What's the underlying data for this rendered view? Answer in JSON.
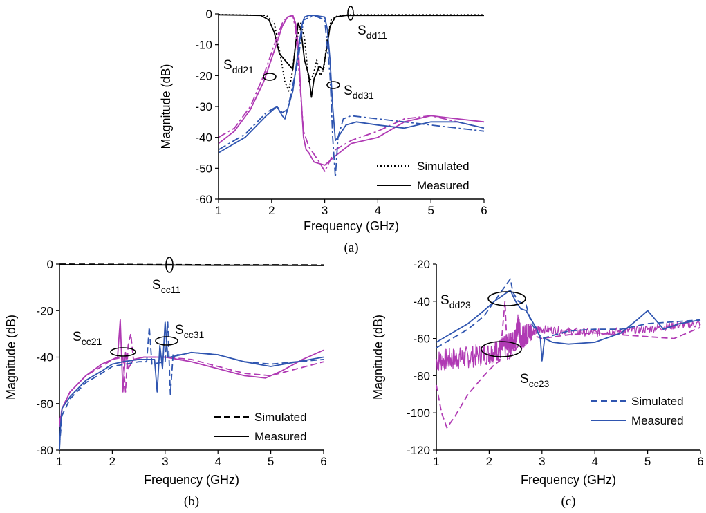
{
  "chart_data": [
    {
      "id": "a",
      "type": "line",
      "caption": "(a)",
      "xlabel": "Frequency (GHz)",
      "ylabel": "Magnitude (dB)",
      "xlim": [
        1,
        6
      ],
      "ylim": [
        -60,
        0
      ],
      "xticks": [
        1,
        2,
        3,
        4,
        5,
        6
      ],
      "yticks": [
        0,
        -10,
        -20,
        -30,
        -40,
        -50,
        -60
      ],
      "grid": false,
      "legend": {
        "position": "bottom-right",
        "entries": [
          {
            "label": "Simulated",
            "dash": "dotted"
          },
          {
            "label": "Measured",
            "dash": "solid"
          }
        ]
      },
      "annotations": [
        {
          "main": "S",
          "sub": "dd11"
        },
        {
          "main": "S",
          "sub": "dd21"
        },
        {
          "main": "S",
          "sub": "dd31"
        }
      ],
      "series": [
        {
          "ref": "Sdd11 measured",
          "color": "#000000",
          "dash": "solid",
          "x": [
            1,
            1.8,
            1.95,
            2.05,
            2.15,
            2.25,
            2.35,
            2.4,
            2.45,
            2.5,
            2.55,
            2.62,
            2.7,
            2.75,
            2.8,
            2.85,
            2.9,
            2.97,
            3.05,
            3.1,
            3.2,
            3.4,
            6
          ],
          "y": [
            -0.3,
            -0.5,
            -2,
            -6,
            -13,
            -15,
            -17,
            -18,
            -10,
            -3,
            -5,
            -15,
            -20,
            -27,
            -21,
            -19,
            -17,
            -18,
            -10,
            -4,
            -1,
            -0.5,
            -0.5
          ]
        },
        {
          "ref": "Sdd11 simulated",
          "color": "#000000",
          "dash": "dotted",
          "x": [
            1,
            1.9,
            2.05,
            2.15,
            2.25,
            2.32,
            2.38,
            2.45,
            2.55,
            2.62,
            2.7,
            2.78,
            2.85,
            2.92,
            2.98,
            3.05,
            3.12,
            3.25,
            3.5,
            6
          ],
          "y": [
            -0.2,
            -0.5,
            -3,
            -12,
            -22,
            -25,
            -20,
            -10,
            -3,
            -8,
            -22,
            -20,
            -15,
            -20,
            -18,
            -8,
            -2,
            -0.5,
            -0.3,
            -0.3
          ]
        },
        {
          "ref": "Sdd21 measured",
          "color": "#b03ab4",
          "dash": "solid",
          "x": [
            1,
            1.3,
            1.6,
            1.85,
            2.05,
            2.2,
            2.3,
            2.4,
            2.45,
            2.5,
            2.55,
            2.6,
            2.65,
            2.7,
            2.8,
            3.0,
            3.2,
            3.5,
            4.0,
            4.5,
            5.0,
            5.5,
            6
          ],
          "y": [
            -42,
            -38,
            -31,
            -22,
            -12,
            -4,
            -1,
            -0.5,
            -3,
            -10,
            -25,
            -40,
            -44,
            -45,
            -48,
            -49,
            -46,
            -42,
            -40,
            -35,
            -33,
            -34,
            -35
          ]
        },
        {
          "ref": "Sdd21 simulated",
          "color": "#b03ab4",
          "dash": "dashdot",
          "x": [
            1,
            1.3,
            1.6,
            1.85,
            2.05,
            2.2,
            2.3,
            2.4,
            2.45,
            2.5,
            2.6,
            2.7,
            2.9,
            3.0,
            3.2,
            3.5,
            4.0,
            4.5,
            5.0,
            5.5,
            6
          ],
          "y": [
            -40,
            -37,
            -30,
            -20,
            -10,
            -3,
            -1,
            -0.5,
            -5,
            -15,
            -38,
            -43,
            -48,
            -51,
            -44,
            -41,
            -38,
            -34,
            -33,
            -35,
            -37
          ]
        },
        {
          "ref": "Sdd31 measured",
          "color": "#2f55b0",
          "dash": "solid",
          "x": [
            1,
            1.5,
            1.9,
            2.1,
            2.2,
            2.25,
            2.3,
            2.4,
            2.5,
            2.58,
            2.62,
            2.7,
            2.8,
            3.0,
            3.05,
            3.1,
            3.15,
            3.2,
            3.25,
            3.4,
            3.6,
            4.0,
            4.5,
            5.0,
            5.5,
            6
          ],
          "y": [
            -45,
            -40,
            -33,
            -30,
            -33,
            -34,
            -31,
            -25,
            -12,
            -3,
            -1,
            -0.5,
            -0.5,
            -1,
            -5,
            -15,
            -30,
            -41,
            -40,
            -36,
            -35,
            -36,
            -37,
            -35,
            -35,
            -37
          ]
        },
        {
          "ref": "Sdd31 simulated",
          "color": "#2f55b0",
          "dash": "dashdot",
          "x": [
            1,
            1.5,
            1.9,
            2.1,
            2.2,
            2.3,
            2.5,
            2.6,
            2.8,
            3.0,
            3.1,
            3.15,
            3.2,
            3.25,
            3.35,
            3.5,
            4.0,
            4.5,
            5.0,
            5.5,
            6
          ],
          "y": [
            -44,
            -39,
            -32,
            -30,
            -32,
            -31,
            -15,
            -2,
            -0.5,
            -2,
            -20,
            -40,
            -53,
            -40,
            -34,
            -33,
            -34,
            -35,
            -36,
            -37,
            -38
          ]
        }
      ]
    },
    {
      "id": "b",
      "type": "line",
      "caption": "(b)",
      "xlabel": "Frequency (GHz)",
      "ylabel": "Magnitude (dB)",
      "xlim": [
        1,
        6
      ],
      "ylim": [
        -80,
        0
      ],
      "xticks": [
        1,
        2,
        3,
        4,
        5,
        6
      ],
      "yticks": [
        0,
        -20,
        -40,
        -60,
        -80
      ],
      "grid": false,
      "legend": {
        "position": "bottom-right",
        "entries": [
          {
            "label": "Simulated",
            "dash": "dashed"
          },
          {
            "label": "Measured",
            "dash": "solid"
          }
        ]
      },
      "annotations": [
        {
          "main": "S",
          "sub": "cc11"
        },
        {
          "main": "S",
          "sub": "cc21"
        },
        {
          "main": "S",
          "sub": "cc31"
        }
      ],
      "series": [
        {
          "ref": "Scc11 measured",
          "color": "#000000",
          "dash": "solid",
          "x": [
            1,
            2,
            3,
            4,
            5,
            6
          ],
          "y": [
            -0.3,
            -0.3,
            -0.4,
            -0.5,
            -0.5,
            -0.6
          ]
        },
        {
          "ref": "Scc11 simulated",
          "color": "#000000",
          "dash": "dashed",
          "x": [
            1,
            2,
            3,
            4,
            5,
            6
          ],
          "y": [
            0,
            -0.1,
            -0.2,
            -0.3,
            -0.3,
            -0.4
          ]
        },
        {
          "ref": "Scc21 measured",
          "color": "#b03ab4",
          "dash": "solid",
          "x": [
            1,
            1.05,
            1.2,
            1.5,
            1.8,
            2.0,
            2.1,
            2.15,
            2.2,
            2.25,
            2.3,
            2.4,
            2.6,
            3.0,
            3.5,
            4.0,
            4.5,
            4.9,
            5.2,
            5.6,
            6
          ],
          "y": [
            -70,
            -62,
            -55,
            -48,
            -43,
            -41,
            -40,
            -24,
            -55,
            -38,
            -45,
            -41,
            -40,
            -40,
            -42,
            -45,
            -48,
            -49,
            -46,
            -41,
            -37
          ]
        },
        {
          "ref": "Scc21 simulated",
          "color": "#b03ab4",
          "dash": "dashed",
          "x": [
            1,
            1.05,
            1.2,
            1.5,
            1.8,
            2.0,
            2.2,
            2.25,
            2.3,
            2.35,
            2.4,
            2.6,
            3.0,
            3.5,
            4.0,
            4.5,
            5.0,
            5.5,
            6
          ],
          "y": [
            -68,
            -62,
            -55,
            -48,
            -44,
            -41,
            -40,
            -55,
            -35,
            -30,
            -41,
            -40,
            -40,
            -41,
            -44,
            -47,
            -48,
            -45,
            -42
          ]
        },
        {
          "ref": "Scc31 measured",
          "color": "#2f55b0",
          "dash": "solid",
          "x": [
            1,
            1.02,
            1.05,
            1.2,
            1.5,
            1.8,
            2.0,
            2.2,
            2.5,
            2.8,
            2.85,
            2.9,
            2.95,
            3.0,
            3.05,
            3.1,
            3.3,
            3.5,
            4.0,
            4.5,
            5.0,
            5.5,
            6
          ],
          "y": [
            -80,
            -70,
            -62,
            -57,
            -50,
            -46,
            -43,
            -42,
            -41,
            -41,
            -55,
            -35,
            -45,
            -25,
            -40,
            -40,
            -39,
            -38,
            -39,
            -42,
            -44,
            -42,
            -40
          ]
        },
        {
          "ref": "Scc31 simulated",
          "color": "#2f55b0",
          "dash": "dashed",
          "x": [
            1,
            1.05,
            1.2,
            1.5,
            1.8,
            2.0,
            2.5,
            2.65,
            2.7,
            2.75,
            3.0,
            3.05,
            3.1,
            3.15,
            3.3,
            3.5,
            4.0,
            4.5,
            5.0,
            5.5,
            6
          ],
          "y": [
            -78,
            -65,
            -58,
            -51,
            -47,
            -44,
            -42,
            -42,
            -27,
            -43,
            -42,
            -25,
            -56,
            -39,
            -39,
            -38,
            -39,
            -42,
            -43,
            -42,
            -41
          ]
        }
      ]
    },
    {
      "id": "c",
      "type": "line",
      "caption": "(c)",
      "xlabel": "Frequency (GHz)",
      "ylabel": "Magnitude (dB)",
      "xlim": [
        1,
        6
      ],
      "ylim": [
        -120,
        -20
      ],
      "xticks": [
        1,
        2,
        3,
        4,
        5,
        6
      ],
      "yticks": [
        -20,
        -40,
        -60,
        -80,
        -100,
        -120
      ],
      "grid": false,
      "legend": {
        "position": "bottom-right",
        "entries": [
          {
            "label": "Simulated",
            "dash": "dashed",
            "color": "#2f55b0"
          },
          {
            "label": "Measured",
            "dash": "solid",
            "color": "#2f55b0"
          }
        ]
      },
      "annotations": [
        {
          "main": "S",
          "sub": "dd23"
        },
        {
          "main": "S",
          "sub": "cc23"
        }
      ],
      "series": [
        {
          "ref": "Scc23 measured",
          "color": "#b03ab4",
          "dash": "solid",
          "noise": 6,
          "x": [
            1,
            1.3,
            1.6,
            2.0,
            2.2,
            2.4,
            2.5,
            2.55,
            2.6,
            2.7,
            2.8,
            3.0,
            3.5,
            4.0,
            4.5,
            5.0,
            5.5,
            6
          ],
          "y": [
            -72,
            -71,
            -70,
            -68,
            -66,
            -63,
            -60,
            -52,
            -60,
            -58,
            -56,
            -55,
            -56,
            -57,
            -56,
            -55,
            -53,
            -52
          ]
        },
        {
          "ref": "Scc23 simulated",
          "color": "#b03ab4",
          "dash": "dashed",
          "x": [
            1,
            1.1,
            1.2,
            1.35,
            1.6,
            1.9,
            2.1,
            2.2,
            2.3,
            2.35,
            2.45,
            2.6,
            2.8,
            3.0,
            3.5,
            4.0,
            4.5,
            5.0,
            5.5,
            6
          ],
          "y": [
            -85,
            -100,
            -108,
            -102,
            -90,
            -80,
            -74,
            -72,
            -40,
            -72,
            -68,
            -62,
            -58,
            -60,
            -58,
            -57,
            -58,
            -59,
            -60,
            -54
          ]
        },
        {
          "ref": "Sdd23 measured",
          "color": "#2f55b0",
          "dash": "solid",
          "x": [
            1,
            1.3,
            1.6,
            1.9,
            2.1,
            2.2,
            2.3,
            2.4,
            2.5,
            2.6,
            2.7,
            2.8,
            2.9,
            2.97,
            3.0,
            3.05,
            3.2,
            3.5,
            4.0,
            4.5,
            4.8,
            5.0,
            5.3,
            5.6,
            6
          ],
          "y": [
            -62,
            -57,
            -52,
            -45,
            -40,
            -38,
            -36,
            -34,
            -40,
            -44,
            -45,
            -50,
            -55,
            -60,
            -72,
            -60,
            -62,
            -63,
            -62,
            -57,
            -50,
            -45,
            -55,
            -52,
            -50
          ]
        },
        {
          "ref": "Sdd23 simulated",
          "color": "#2f55b0",
          "dash": "dashed",
          "x": [
            1,
            1.3,
            1.6,
            1.9,
            2.1,
            2.3,
            2.4,
            2.45,
            2.55,
            2.7,
            2.8,
            3.0,
            3.5,
            4.0,
            4.5,
            5.0,
            5.5,
            6
          ],
          "y": [
            -65,
            -60,
            -55,
            -48,
            -40,
            -32,
            -28,
            -35,
            -40,
            -42,
            -52,
            -60,
            -56,
            -55,
            -55,
            -52,
            -51,
            -50
          ]
        }
      ]
    }
  ]
}
